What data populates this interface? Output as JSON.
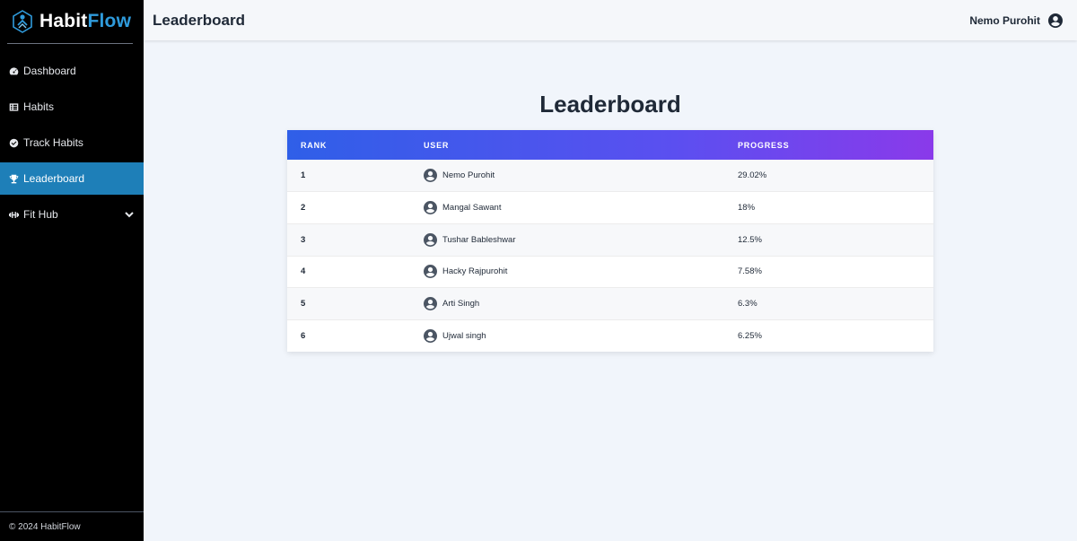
{
  "brand": {
    "name_part1": "Habit",
    "name_part2": "Flow"
  },
  "sidebar": {
    "items": [
      {
        "label": "Dashboard",
        "icon": "gauge-icon"
      },
      {
        "label": "Habits",
        "icon": "list-icon"
      },
      {
        "label": "Track Habits",
        "icon": "check-circle-icon"
      },
      {
        "label": "Leaderboard",
        "icon": "trophy-icon",
        "active": true
      },
      {
        "label": "Fit Hub",
        "icon": "dumbbell-icon",
        "expandable": true
      }
    ],
    "footer": "© 2024 HabitFlow"
  },
  "header": {
    "title": "Leaderboard",
    "user_name": "Nemo Purohit"
  },
  "main": {
    "heading": "Leaderboard",
    "table": {
      "columns": [
        "RANK",
        "USER",
        "PROGRESS"
      ],
      "rows": [
        {
          "rank": "1",
          "user": "Nemo Purohit",
          "progress": "29.02%"
        },
        {
          "rank": "2",
          "user": "Mangal Sawant",
          "progress": "18%"
        },
        {
          "rank": "3",
          "user": "Tushar Bableshwar",
          "progress": "12.5%"
        },
        {
          "rank": "4",
          "user": "Hacky Rajpurohit",
          "progress": "7.58%"
        },
        {
          "rank": "5",
          "user": "Arti Singh",
          "progress": "6.3%"
        },
        {
          "rank": "6",
          "user": "Ujwal singh",
          "progress": "6.25%"
        }
      ]
    }
  },
  "colors": {
    "accent": "#1e7fb8",
    "brand_blue": "#2f9bdc",
    "header_gradient_start": "#2f5fe8",
    "header_gradient_end": "#8a3aea"
  }
}
